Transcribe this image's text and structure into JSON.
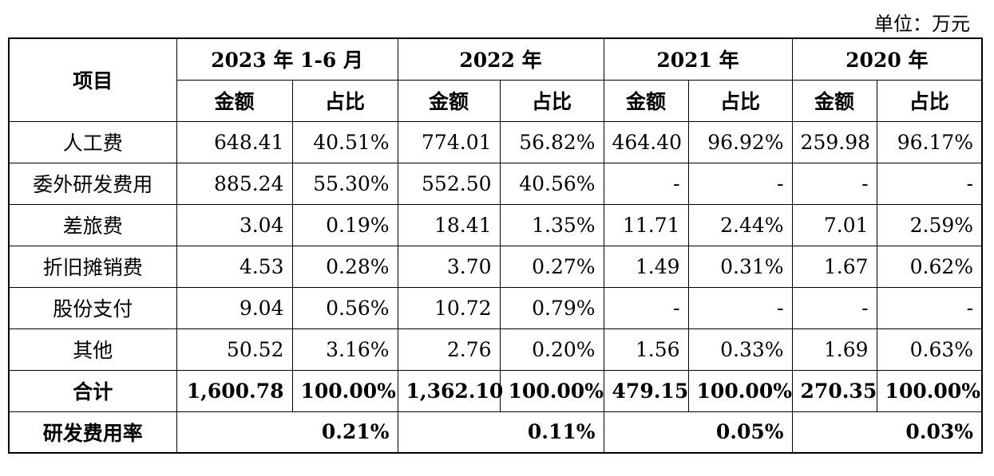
{
  "unit_label": "单位：万元",
  "header": {
    "item": "项目",
    "periods": [
      "2023 年 1-6 月",
      "2022 年",
      "2021 年",
      "2020 年"
    ],
    "amount": "金额",
    "ratio": "占比"
  },
  "rows": [
    {
      "name": "人工费",
      "values": [
        "648.41",
        "40.51%",
        "774.01",
        "56.82%",
        "464.40",
        "96.92%",
        "259.98",
        "96.17%"
      ]
    },
    {
      "name": "委外研发费用",
      "values": [
        "885.24",
        "55.30%",
        "552.50",
        "40.56%",
        "-",
        "-",
        "-",
        "-"
      ]
    },
    {
      "name": "差旅费",
      "values": [
        "3.04",
        "0.19%",
        "18.41",
        "1.35%",
        "11.71",
        "2.44%",
        "7.01",
        "2.59%"
      ]
    },
    {
      "name": "折旧摊销费",
      "values": [
        "4.53",
        "0.28%",
        "3.70",
        "0.27%",
        "1.49",
        "0.31%",
        "1.67",
        "0.62%"
      ]
    },
    {
      "name": "股份支付",
      "values": [
        "9.04",
        "0.56%",
        "10.72",
        "0.79%",
        "-",
        "-",
        "-",
        "-"
      ]
    },
    {
      "name": "其他",
      "values": [
        "50.52",
        "3.16%",
        "2.76",
        "0.20%",
        "1.56",
        "0.33%",
        "1.69",
        "0.63%"
      ]
    }
  ],
  "total": {
    "name": "合计",
    "values": [
      "1,600.78",
      "100.00%",
      "1,362.10",
      "100.00%",
      "479.15",
      "100.00%",
      "270.35",
      "100.00%"
    ]
  },
  "rd_rate": {
    "name": "研发费用率",
    "values": [
      "0.21%",
      "0.11%",
      "0.05%",
      "0.03%"
    ]
  }
}
